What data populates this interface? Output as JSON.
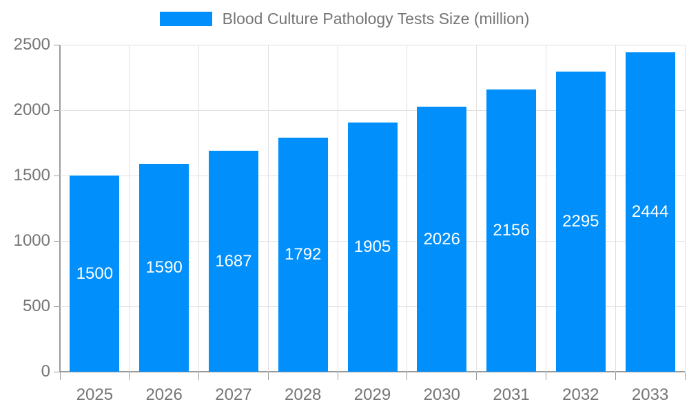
{
  "chart_data": {
    "type": "bar",
    "title": "Blood Culture Pathology Tests Size (million)",
    "legend": {
      "label": "Blood Culture Pathology Tests Size (million)",
      "position": "top"
    },
    "categories": [
      "2025",
      "2026",
      "2027",
      "2028",
      "2029",
      "2030",
      "2031",
      "2032",
      "2033"
    ],
    "series": [
      {
        "name": "Blood Culture Pathology Tests Size (million)",
        "values": [
          1500,
          1590,
          1687,
          1792,
          1905,
          2026,
          2156,
          2295,
          2444
        ]
      }
    ],
    "xlabel": "",
    "ylabel": "",
    "ylim": [
      0,
      2500
    ],
    "yticks": [
      0,
      500,
      1000,
      1500,
      2000,
      2500
    ],
    "grid": true,
    "data_labels_inside_bars": true,
    "colors": {
      "bar": "#008FFB",
      "bar_label": "#ffffff",
      "axis_text": "#757575",
      "axis_line": "#999999",
      "gridline": "#e0e0e0",
      "background": "#ffffff"
    }
  }
}
